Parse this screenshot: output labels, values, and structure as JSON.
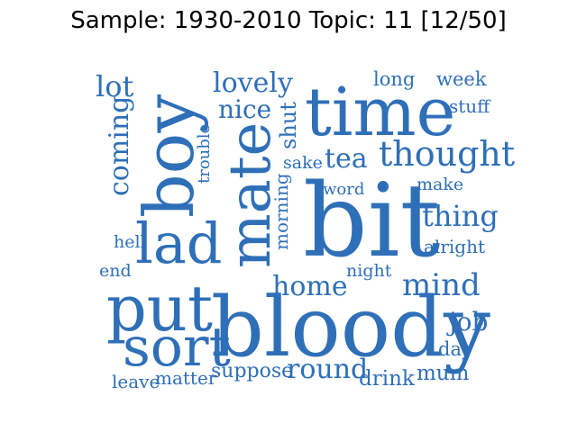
{
  "title": "Sample: 1930-2010 Topic: 11 [12/50]",
  "colors": {
    "word": "#2e6fb8",
    "background": "#ffffff",
    "title": "#000000"
  },
  "words": {
    "time": "time",
    "bit": "bit",
    "bloody": "bloody",
    "boy": "boy",
    "mate": "mate",
    "put": "put",
    "lad": "lad",
    "sort": "sort",
    "thought": "thought",
    "home": "home",
    "mind": "mind",
    "round": "round",
    "thing": "thing",
    "lovely": "lovely",
    "nice": "nice",
    "tea": "tea",
    "lot": "lot",
    "coming": "coming",
    "job": "job",
    "suppose": "suppose",
    "shut": "shut",
    "morning": "morning",
    "long": "long",
    "week": "week",
    "stuff": "stuff",
    "make": "make",
    "alright": "alright",
    "word": "word",
    "sake": "sake",
    "trouble": "trouble",
    "hell": "hell",
    "end": "end",
    "night": "night",
    "day": "day",
    "mum": "mum",
    "drink": "drink",
    "matter": "matter",
    "leave": "leave"
  }
}
